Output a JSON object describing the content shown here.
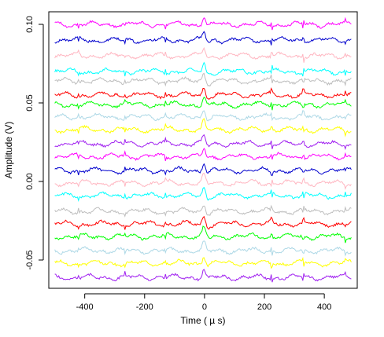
{
  "chart_data": {
    "type": "line",
    "title": "",
    "xlabel": "Time ( µ s)",
    "ylabel": "Amplitude (V)",
    "xlim": [
      -520,
      510
    ],
    "ylim": [
      -0.068,
      0.108
    ],
    "x_ticks": [
      -400,
      -200,
      0,
      200,
      400
    ],
    "x_tick_labels": [
      "-400",
      "-200",
      "0",
      "200",
      "400"
    ],
    "y_ticks": [
      -0.05,
      0.0,
      0.05,
      0.1
    ],
    "y_tick_labels": [
      "-0.05",
      "0.00",
      "0.05",
      "0.10"
    ],
    "grid": false,
    "legend": "none",
    "x_range": [
      -500,
      490
    ],
    "series": [
      {
        "offset": 0.1,
        "color": "#ff00ff"
      },
      {
        "offset": 0.09,
        "color": "#0000cd"
      },
      {
        "offset": 0.08,
        "color": "#ffb6c1"
      },
      {
        "offset": 0.07,
        "color": "#00ffff"
      },
      {
        "offset": 0.064,
        "color": "#bebebe"
      },
      {
        "offset": 0.055,
        "color": "#ff0000"
      },
      {
        "offset": 0.049,
        "color": "#00ff00"
      },
      {
        "offset": 0.041,
        "color": "#add8e6"
      },
      {
        "offset": 0.033,
        "color": "#ffff00"
      },
      {
        "offset": 0.024,
        "color": "#a020f0"
      },
      {
        "offset": 0.016,
        "color": "#ff00ff"
      },
      {
        "offset": 0.007,
        "color": "#0000cd"
      },
      {
        "offset": -0.001,
        "color": "#ffb6c1"
      },
      {
        "offset": -0.009,
        "color": "#00ffff"
      },
      {
        "offset": -0.019,
        "color": "#bebebe"
      },
      {
        "offset": -0.027,
        "color": "#ff0000"
      },
      {
        "offset": -0.035,
        "color": "#00ff00"
      },
      {
        "offset": -0.044,
        "color": "#add8e6"
      },
      {
        "offset": -0.052,
        "color": "#ffff00"
      },
      {
        "offset": -0.061,
        "color": "#a020f0"
      }
    ]
  }
}
